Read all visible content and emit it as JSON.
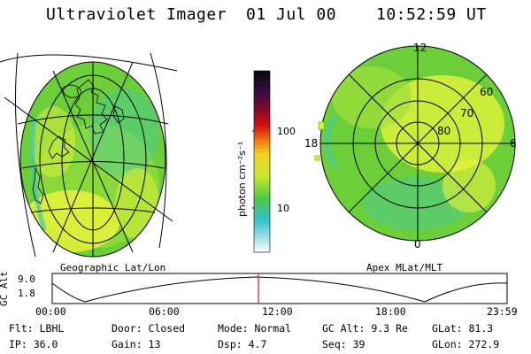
{
  "header": {
    "title": "Ultraviolet Imager",
    "date": "01 Jul 00",
    "time": "10:52:59 UT"
  },
  "colors": {
    "aurora_green": "#6ccf3a",
    "aurora_yellow": "#e6f23a",
    "aurora_cyan": "#3fc8b9",
    "time_marker": "#cc2222"
  },
  "colorbar": {
    "label": "photon cm⁻²s⁻¹",
    "ticks": [
      "100",
      "10"
    ],
    "scale": "log"
  },
  "geo_panel": {
    "caption": "Geographic Lat/Lon"
  },
  "polar_panel": {
    "caption": "Apex MLat/MLT",
    "lat_labels": [
      "60",
      "70",
      "80"
    ],
    "mlt_labels": [
      "12",
      "18",
      "6",
      "0"
    ]
  },
  "altitude_plot": {
    "ylabel": "GC Alt",
    "yticks": [
      "9.0",
      "1.8"
    ],
    "xticks": [
      "00:00",
      "06:00",
      "12:00",
      "18:00",
      "23:59"
    ],
    "marker_time": "10:52:59"
  },
  "info": {
    "flt": "Flt: LBHL",
    "ip": "IP: 36.0",
    "door": "Door: Closed",
    "gain": "Gain: 13",
    "mode": "Mode: Normal",
    "dsp": "Dsp:    4.7",
    "gc_alt": "GC Alt: 9.3 Re",
    "seq": "Seq: 39",
    "glat": "GLat:  81.3",
    "glon": "GLon: 272.9"
  }
}
